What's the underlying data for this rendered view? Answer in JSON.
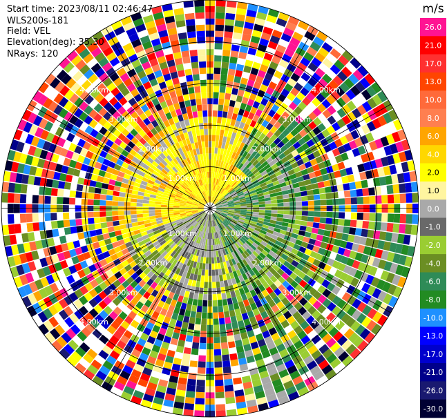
{
  "header": {
    "start_time": "Start time: 2023/08/11 02:46:47",
    "instrument": "WLS200s-181",
    "field": "Field: VEL",
    "elevation": "Elevation(deg): 35.30",
    "nrays": "NRays: 120"
  },
  "chart_data": {
    "type": "heatmap",
    "projection": "ppi-polar",
    "n_rays": 120,
    "max_range_km": 5.0,
    "range_ring_labels_km": [
      "1.00km",
      "2.00km",
      "3.00km",
      "4.00km"
    ],
    "colorbar": {
      "unit": "m/s",
      "ticks": [
        "26.0",
        "21.0",
        "17.0",
        "13.0",
        "10.0",
        "8.0",
        "6.0",
        "4.0",
        "2.0",
        "1.0",
        "0.0",
        "-1.0",
        "-2.0",
        "-4.0",
        "-6.0",
        "-8.0",
        "-10.0",
        "-13.0",
        "-17.0",
        "-21.0",
        "-26.0",
        "-30.0"
      ],
      "colors": [
        "#ff1493",
        "#ff0000",
        "#ff3030",
        "#ff4500",
        "#ff6a3a",
        "#ff7f50",
        "#ffa500",
        "#ffd700",
        "#ffff00",
        "#fff5a0",
        "#a9a9a9",
        "#696969",
        "#9acd32",
        "#6b8e23",
        "#2e8b57",
        "#228b22",
        "#1e90ff",
        "#0000ff",
        "#0000cd",
        "#00008b",
        "#191970",
        "#000033"
      ]
    }
  }
}
